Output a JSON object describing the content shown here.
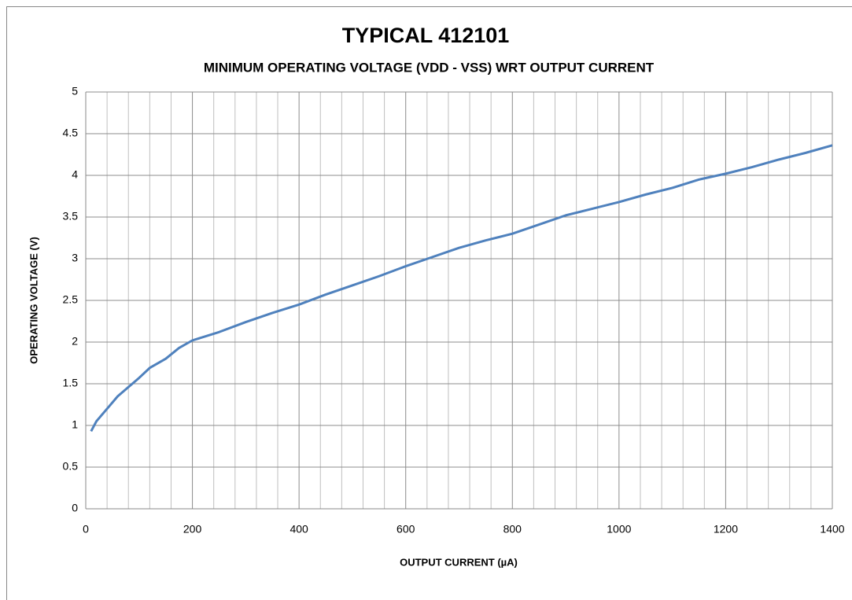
{
  "chart_data": {
    "type": "line",
    "title": "TYPICAL 412101",
    "subtitle": "MINIMUM OPERATING VOLTAGE (VDD - VSS) WRT OUTPUT CURRENT",
    "xlabel": "OUTPUT CURRENT (µA)",
    "ylabel": "OPERATING VOLTAGE (V)",
    "x": [
      10,
      20,
      40,
      60,
      80,
      100,
      120,
      150,
      175,
      200,
      250,
      300,
      350,
      400,
      450,
      500,
      550,
      600,
      650,
      700,
      750,
      800,
      850,
      900,
      950,
      1000,
      1050,
      1100,
      1150,
      1200,
      1250,
      1300,
      1350,
      1400
    ],
    "series": [
      {
        "color": "#4f81bd",
        "values": [
          0.93,
          1.05,
          1.2,
          1.35,
          1.46,
          1.57,
          1.69,
          1.8,
          1.93,
          2.02,
          2.12,
          2.24,
          2.35,
          2.45,
          2.57,
          2.68,
          2.79,
          2.91,
          3.02,
          3.13,
          3.22,
          3.3,
          3.41,
          3.52,
          3.6,
          3.68,
          3.77,
          3.85,
          3.95,
          4.02,
          4.1,
          4.19,
          4.27,
          4.36
        ]
      }
    ],
    "xlim": [
      0,
      1400
    ],
    "ylim": [
      0,
      5
    ],
    "xticks": [
      0,
      200,
      400,
      600,
      800,
      1000,
      1200,
      1400
    ],
    "xminorticks": [
      40,
      80,
      120,
      160,
      240,
      280,
      320,
      360,
      440,
      480,
      520,
      560,
      640,
      680,
      720,
      760,
      840,
      880,
      920,
      960,
      1040,
      1080,
      1120,
      1160,
      1240,
      1280,
      1320,
      1360
    ],
    "yticks": [
      0,
      0.5,
      1,
      1.5,
      2,
      2.5,
      3,
      3.5,
      4,
      4.5,
      5
    ],
    "grid": true
  }
}
